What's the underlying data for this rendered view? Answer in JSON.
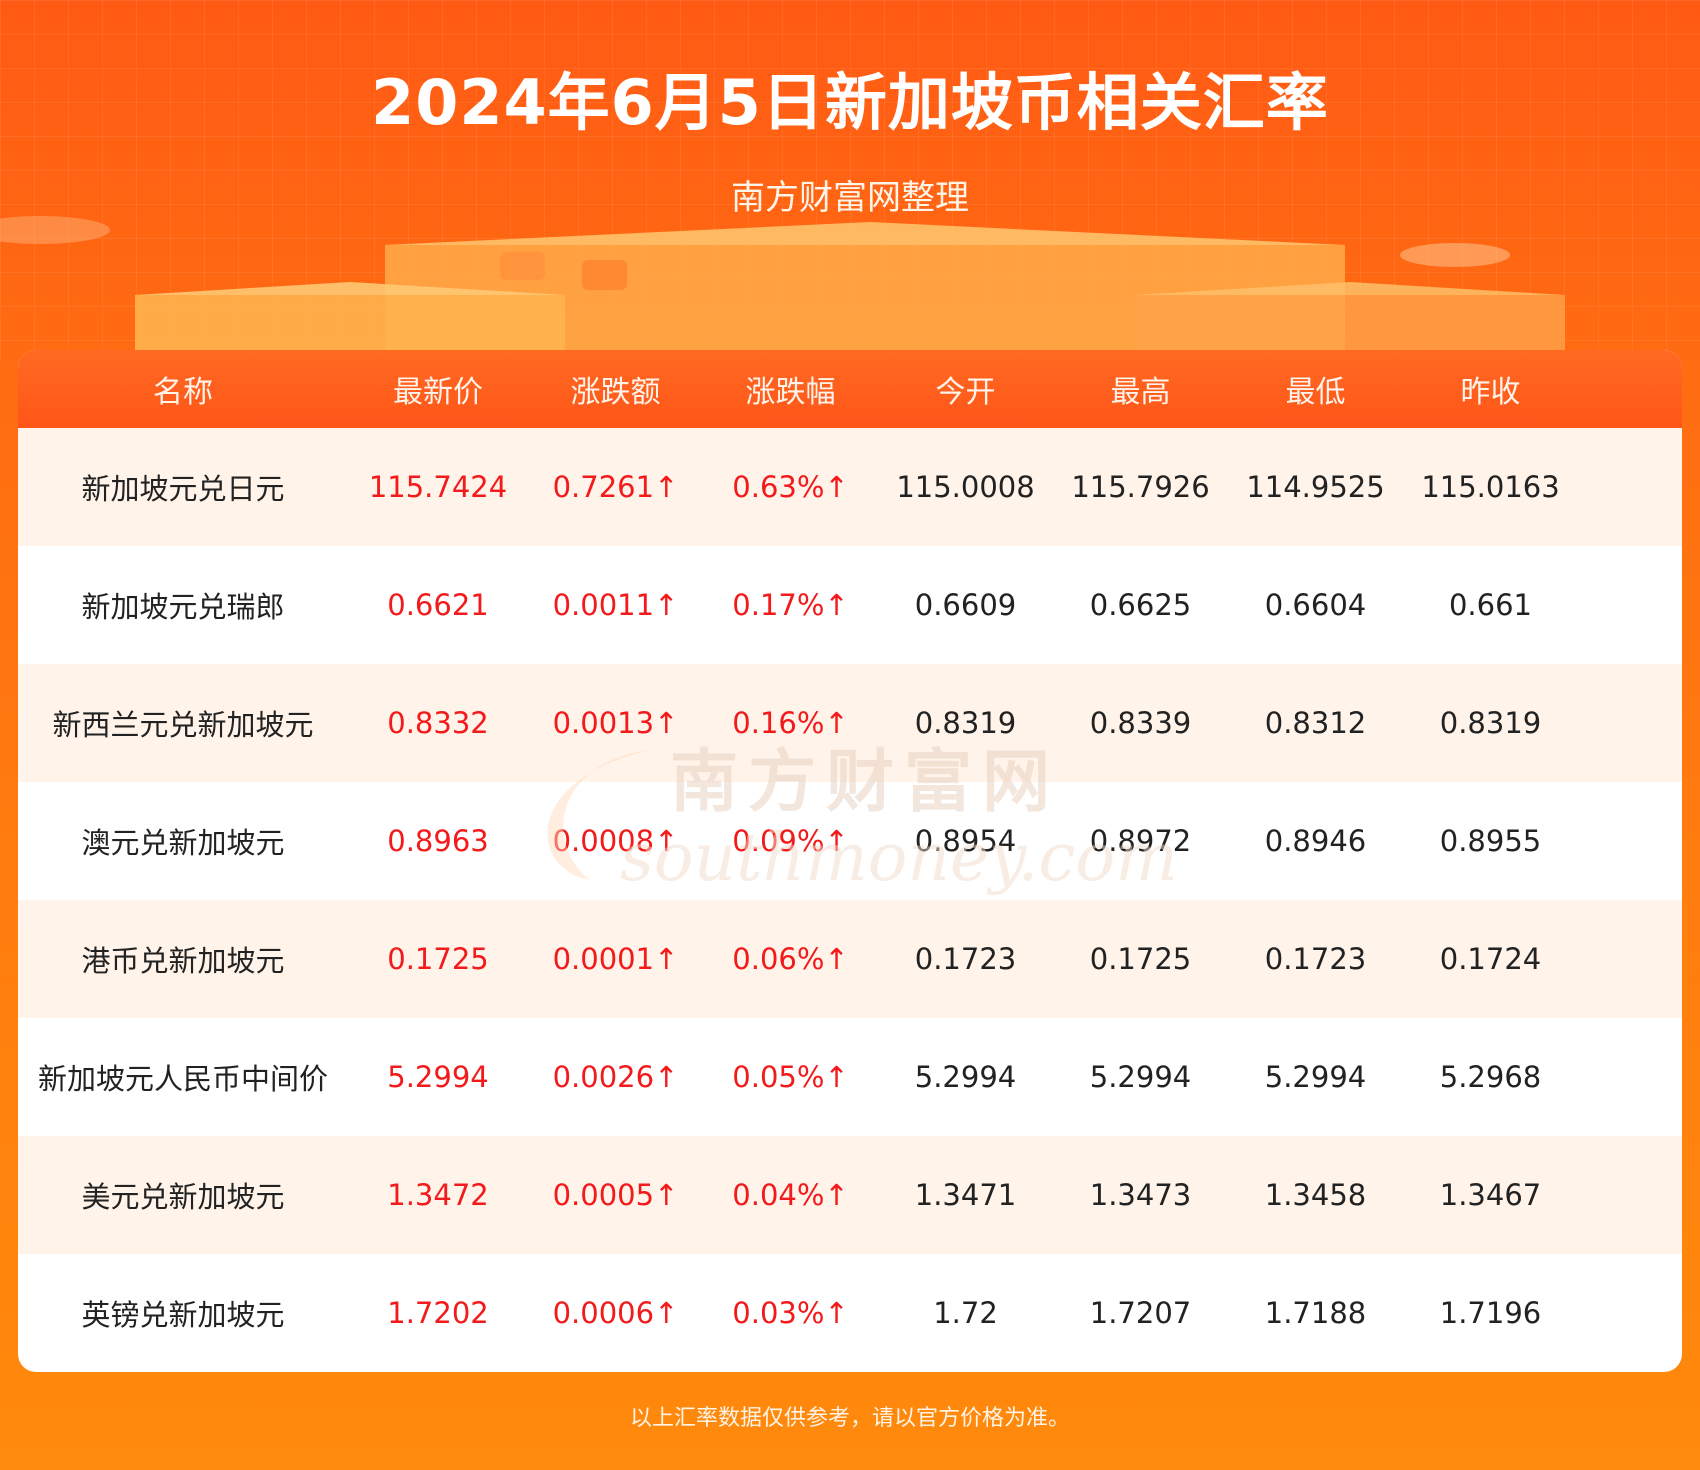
{
  "header": {
    "title": "2024年6月5日新加坡币相关汇率",
    "subtitle": "南方财富网整理"
  },
  "table": {
    "columns": [
      "名称",
      "最新价",
      "涨跌额",
      "涨跌幅",
      "今开",
      "最高",
      "最低",
      "昨收"
    ],
    "rows": [
      [
        "新加坡元兑日元",
        "115.7424",
        "0.7261↑",
        "0.63%↑",
        "115.0008",
        "115.7926",
        "114.9525",
        "115.0163"
      ],
      [
        "新加坡元兑瑞郎",
        "0.6621",
        "0.0011↑",
        "0.17%↑",
        "0.6609",
        "0.6625",
        "0.6604",
        "0.661"
      ],
      [
        "新西兰元兑新加坡元",
        "0.8332",
        "0.0013↑",
        "0.16%↑",
        "0.8319",
        "0.8339",
        "0.8312",
        "0.8319"
      ],
      [
        "澳元兑新加坡元",
        "0.8963",
        "0.0008↑",
        "0.09%↑",
        "0.8954",
        "0.8972",
        "0.8946",
        "0.8955"
      ],
      [
        "港币兑新加坡元",
        "0.1725",
        "0.0001↑",
        "0.06%↑",
        "0.1723",
        "0.1725",
        "0.1723",
        "0.1724"
      ],
      [
        "新加坡元人民币中间价",
        "5.2994",
        "0.0026↑",
        "0.05%↑",
        "5.2994",
        "5.2994",
        "5.2994",
        "5.2968"
      ],
      [
        "美元兑新加坡元",
        "1.3472",
        "0.0005↑",
        "0.04%↑",
        "1.3471",
        "1.3473",
        "1.3458",
        "1.3467"
      ],
      [
        "英镑兑新加坡元",
        "1.7202",
        "0.0006↑",
        "0.03%↑",
        "1.72",
        "1.7207",
        "1.7188",
        "1.7196"
      ]
    ]
  },
  "watermark": {
    "cn": "南方财富网",
    "en": "southmoney.com"
  },
  "footer": {
    "note": "以上汇率数据仅供参考，请以官方价格为准。"
  },
  "colors": {
    "up": "#f21a1a",
    "header_orange": "#ff5518",
    "alt_row": "#fff3ea"
  }
}
